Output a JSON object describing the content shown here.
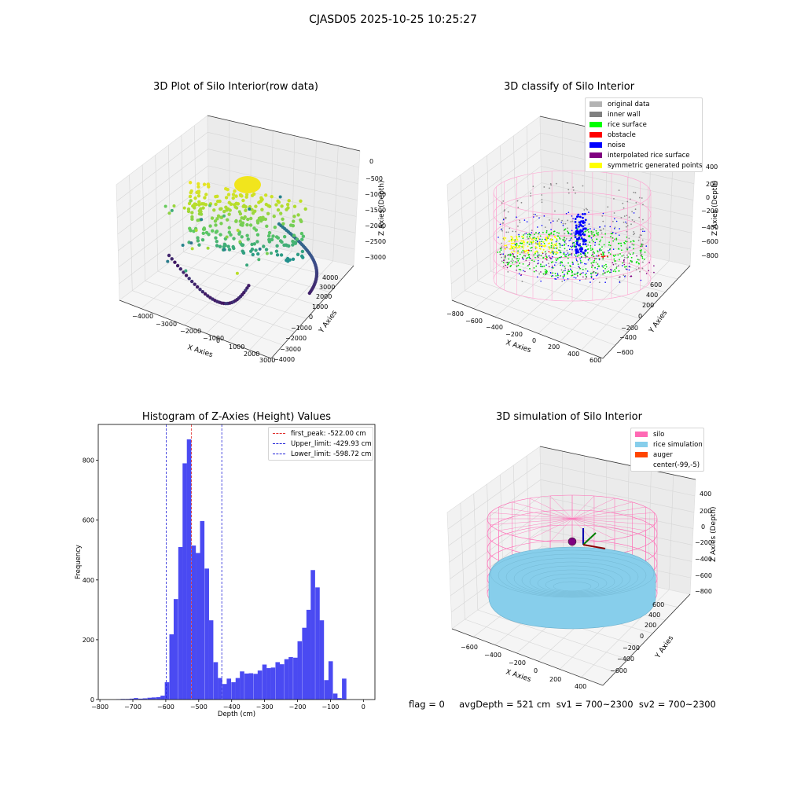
{
  "suptitle": "CJASD05 2025-10-25 10:25:27",
  "footer": "flag = 0     avgDepth = 521 cm  sv1 = 700~2300  sv2 = 700~2300",
  "colors": {
    "histogram": "#4a4af2",
    "first_peak": "#e0312f",
    "limits": "#2323d8",
    "silo": "#ff69b4",
    "rice": "#87ceeb",
    "auger": "#ff4500"
  },
  "chart_data": [
    {
      "type": "scatter",
      "title": "3D Plot of Silo Interior(row data)",
      "xlabel": "X Axies",
      "ylabel": "Y Axies",
      "zlabel": "Z Axies (Depth)",
      "x_ticks": [
        "−4000",
        "−3000",
        "−2000",
        "−1000",
        "0",
        "1000",
        "2000",
        "3000"
      ],
      "y_ticks": [
        "−4000",
        "−3000",
        "−2000",
        "−1000",
        "0",
        "1000",
        "2000",
        "3000",
        "4000"
      ],
      "z_ticks": [
        "0",
        "−500",
        "−1000",
        "−1500",
        "−2000",
        "−2500",
        "−3000"
      ],
      "colormap": "viridis"
    },
    {
      "type": "scatter",
      "title": "3D classify of Silo Interior",
      "xlabel": "X Axies",
      "ylabel": "Y Axies",
      "zlabel": "Z Axies (Depth)",
      "x_ticks": [
        "−800",
        "−600",
        "−400",
        "−200",
        "0",
        "200",
        "400",
        "600"
      ],
      "y_ticks": [
        "−600",
        "−400",
        "−200",
        "0",
        "200",
        "400",
        "600"
      ],
      "z_ticks": [
        "400",
        "200",
        "0",
        "−200",
        "−400",
        "−600",
        "−800"
      ],
      "legend": [
        {
          "label": "original data",
          "color": "#b3b3b3"
        },
        {
          "label": "inner wall",
          "color": "#808080"
        },
        {
          "label": "rice surface",
          "color": "#00ff00"
        },
        {
          "label": "obstacle",
          "color": "#ff0000"
        },
        {
          "label": "noise",
          "color": "#0000ff"
        },
        {
          "label": "interpolated rice surface",
          "color": "#800080"
        },
        {
          "label": "symmetric generated points",
          "color": "#ffff00"
        }
      ]
    },
    {
      "type": "bar",
      "title": "Histogram of Z-Axies (Height) Values",
      "xlabel": "Depth (cm)",
      "ylabel": "Frequency",
      "xlim": [
        -805,
        35
      ],
      "ylim": [
        0,
        920
      ],
      "x_ticks": [
        -800,
        -700,
        -600,
        -500,
        -400,
        -300,
        -200,
        -100,
        0
      ],
      "y_ticks": [
        0,
        200,
        400,
        600,
        800
      ],
      "bin_width": 13.4,
      "bins": [
        [
          -750,
          1
        ],
        [
          -737,
          2
        ],
        [
          -723,
          2
        ],
        [
          -710,
          3
        ],
        [
          -697,
          5
        ],
        [
          -683,
          3
        ],
        [
          -670,
          4
        ],
        [
          -656,
          6
        ],
        [
          -643,
          7
        ],
        [
          -629,
          8
        ],
        [
          -616,
          13
        ],
        [
          -603,
          58
        ],
        [
          -589,
          218
        ],
        [
          -576,
          336
        ],
        [
          -562,
          510
        ],
        [
          -549,
          790
        ],
        [
          -536,
          870
        ],
        [
          -522,
          515
        ],
        [
          -509,
          490
        ],
        [
          -496,
          597
        ],
        [
          -482,
          438
        ],
        [
          -469,
          265
        ],
        [
          -455,
          125
        ],
        [
          -442,
          72
        ],
        [
          -428,
          52
        ],
        [
          -415,
          70
        ],
        [
          -401,
          58
        ],
        [
          -388,
          72
        ],
        [
          -375,
          94
        ],
        [
          -361,
          87
        ],
        [
          -348,
          88
        ],
        [
          -334,
          86
        ],
        [
          -321,
          97
        ],
        [
          -307,
          117
        ],
        [
          -294,
          105
        ],
        [
          -281,
          107
        ],
        [
          -267,
          125
        ],
        [
          -254,
          118
        ],
        [
          -240,
          135
        ],
        [
          -227,
          142
        ],
        [
          -213,
          140
        ],
        [
          -200,
          195
        ],
        [
          -186,
          240
        ],
        [
          -173,
          300
        ],
        [
          -160,
          433
        ],
        [
          -146,
          375
        ],
        [
          -133,
          265
        ],
        [
          -119,
          65
        ],
        [
          -106,
          128
        ],
        [
          -92,
          20
        ],
        [
          -79,
          5
        ],
        [
          -65,
          70
        ]
      ],
      "lines": [
        {
          "label": "first_peak: -522.00 cm",
          "x": -522.0,
          "color": "#e0312f"
        },
        {
          "label": "Upper_limit: -429.93 cm",
          "x": -429.93,
          "color": "#2323d8"
        },
        {
          "label": "Lower_limit: -598.72 cm",
          "x": -598.72,
          "color": "#2323d8"
        }
      ]
    },
    {
      "type": "scatter",
      "title": "3D simulation of Silo Interior",
      "xlabel": "X Axies",
      "ylabel": "Y Axies",
      "zlabel": "Z Axies (Depth)",
      "x_ticks": [
        "−600",
        "−400",
        "−200",
        "0",
        "200",
        "400"
      ],
      "y_ticks": [
        "−600",
        "−400",
        "−200",
        "0",
        "200",
        "400",
        "600"
      ],
      "z_ticks": [
        "400",
        "200",
        "0",
        "−200",
        "−400",
        "−600",
        "−800"
      ],
      "legend": [
        {
          "label": "silo",
          "color": "#ff69b4"
        },
        {
          "label": "rice simulation",
          "color": "#87ceeb"
        },
        {
          "label": "auger",
          "color": "#ff4500"
        },
        {
          "label": "center(-99,-5)",
          "color": "none"
        }
      ]
    }
  ]
}
